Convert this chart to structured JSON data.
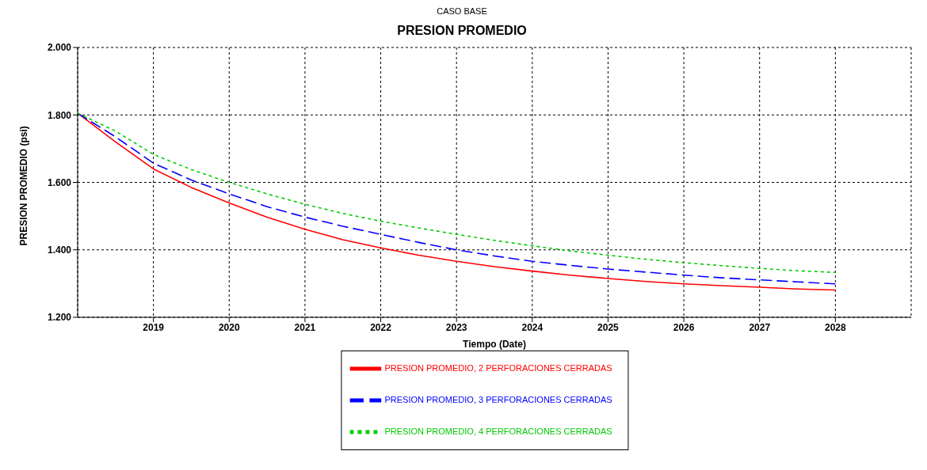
{
  "chart_data": {
    "type": "line",
    "subtitle": "CASO BASE",
    "title": "PRESION PROMEDIO",
    "xlabel": "Tiempo (Date)",
    "ylabel": "PRESION PROMEDIO (psi)",
    "x": [
      2018.0,
      2018.5,
      2019,
      2019.5,
      2020,
      2020.5,
      2021,
      2021.5,
      2022,
      2022.5,
      2023,
      2023.5,
      2024,
      2024.5,
      2025,
      2025.5,
      2026,
      2026.5,
      2027,
      2027.5,
      2028
    ],
    "series": [
      {
        "name": "PRESION PROMEDIO, 2 PERFORACIONES CERRADAS",
        "color": "#ff0000",
        "line_style": "solid",
        "values": [
          1805,
          1720,
          1640,
          1585,
          1539,
          1497,
          1461,
          1430,
          1406,
          1384,
          1366,
          1350,
          1337,
          1325,
          1315,
          1306,
          1299,
          1294,
          1289,
          1284,
          1281
        ]
      },
      {
        "name": "PRESION PROMEDIO, 3 PERFORACIONES CERRADAS",
        "color": "#0000ff",
        "line_style": "dashed",
        "values": [
          1805,
          1735,
          1657,
          1607,
          1566,
          1528,
          1497,
          1470,
          1446,
          1422,
          1400,
          1382,
          1366,
          1354,
          1343,
          1334,
          1325,
          1317,
          1311,
          1305,
          1299
        ]
      },
      {
        "name": "PRESION PROMEDIO, 4 PERFORACIONES CERRADAS",
        "color": "#00cc00",
        "line_style": "dotted",
        "values": [
          1805,
          1752,
          1683,
          1638,
          1600,
          1566,
          1535,
          1508,
          1485,
          1465,
          1446,
          1428,
          1412,
          1397,
          1384,
          1372,
          1362,
          1353,
          1345,
          1338,
          1333
        ]
      }
    ],
    "xlim": [
      2018,
      2029
    ],
    "xticks": [
      2019,
      2020,
      2021,
      2022,
      2023,
      2024,
      2025,
      2026,
      2027,
      2028
    ],
    "ylim": [
      1200,
      2000
    ],
    "yticks": [
      {
        "value": 1200,
        "label": "1.200"
      },
      {
        "value": 1400,
        "label": "1.400"
      },
      {
        "value": 1600,
        "label": "1.600"
      },
      {
        "value": 1800,
        "label": "1.800"
      },
      {
        "value": 2000,
        "label": "2.000"
      }
    ],
    "grid": true,
    "legend": "bottom",
    "marker": "none"
  }
}
